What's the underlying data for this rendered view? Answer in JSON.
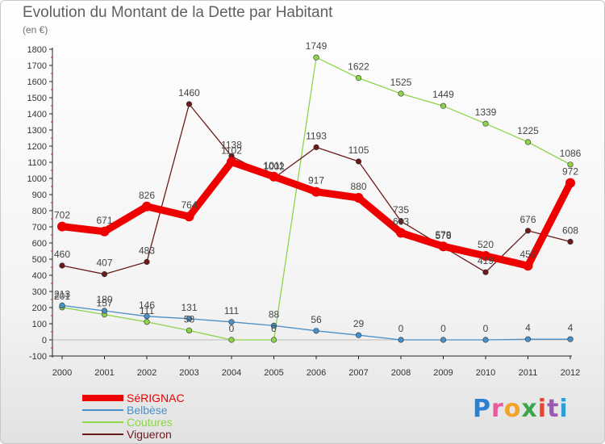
{
  "header": {
    "title": "Evolution du Montant de la Dette par Habitant",
    "subtitle": "(en €)"
  },
  "logo": {
    "text": "Proxiti",
    "colors": [
      "#2b7fd4",
      "#e85a9c",
      "#f2a42a",
      "#3aa84a",
      "#e8452c",
      "#9b59b6",
      "#2b9fd4"
    ]
  },
  "chart_data": {
    "type": "line",
    "title": "Evolution du Montant de la Dette par Habitant",
    "ylabel": "(en €)",
    "xlabel": "",
    "x": [
      "2000",
      "2001",
      "2002",
      "2003",
      "2004",
      "2005",
      "2006",
      "2007",
      "2008",
      "2009",
      "2010",
      "2011",
      "2012"
    ],
    "ylim": [
      -100,
      1800
    ],
    "yticks": [
      -100,
      0,
      100,
      200,
      300,
      400,
      500,
      600,
      700,
      800,
      900,
      1000,
      1100,
      1200,
      1300,
      1400,
      1500,
      1600,
      1700,
      1800
    ],
    "grid": false,
    "legend_position": "bottom-left",
    "series": [
      {
        "name": "SéRIGNAC",
        "color": "#ee0000",
        "values": [
          702,
          671,
          826,
          764,
          1102,
          1011,
          917,
          880,
          663,
          579,
          520,
          459,
          972
        ],
        "labels": [
          "702",
          "671",
          "826",
          "764",
          "1102",
          "1011",
          "917",
          "880",
          "663",
          "579",
          "520",
          "459",
          "972"
        ]
      },
      {
        "name": "Belbèse",
        "color": "#4a90c8",
        "values": [
          213,
          180,
          146,
          131,
          111,
          88,
          56,
          29,
          0,
          0,
          0,
          4,
          4
        ],
        "labels": [
          "213",
          "180",
          "146",
          "131",
          "111",
          "88",
          "56",
          "29",
          "0",
          "0",
          "0",
          "4",
          "4"
        ]
      },
      {
        "name": "Coutures",
        "color": "#8ed44a",
        "values": [
          201,
          157,
          111,
          58,
          0,
          0,
          1749,
          1622,
          1525,
          1449,
          1339,
          1225,
          1086
        ],
        "labels": [
          "201",
          "157",
          "111",
          "58",
          "0",
          "0",
          "1749",
          "1622",
          "1525",
          "1449",
          "1339",
          "1225",
          "1086"
        ]
      },
      {
        "name": "Vigueron",
        "color": "#6b1a1a",
        "values": [
          460,
          407,
          483,
          1460,
          1138,
          1002,
          1193,
          1105,
          735,
          576,
          419,
          676,
          608
        ],
        "labels": [
          "460",
          "407",
          "483",
          "1460",
          "1138",
          "1002",
          "1193",
          "1105",
          "735",
          "576",
          "419",
          "676",
          "608"
        ]
      }
    ]
  }
}
